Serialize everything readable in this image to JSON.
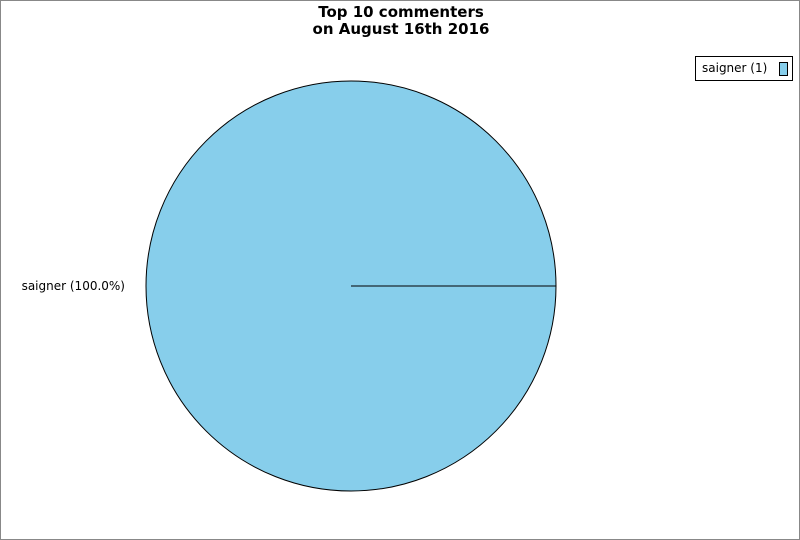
{
  "chart_data": {
    "type": "pie",
    "title": "Top 10 commenters\non August 16th 2016",
    "title_lines": [
      "Top 10 commenters",
      "on August 16th 2016"
    ],
    "slices": [
      {
        "name": "saigner",
        "value": 1,
        "percent": 100.0,
        "color": "#87ceeb",
        "label": "saigner (100.0%)",
        "legend_label": "saigner (1)"
      }
    ],
    "legend_position": "top-right"
  }
}
